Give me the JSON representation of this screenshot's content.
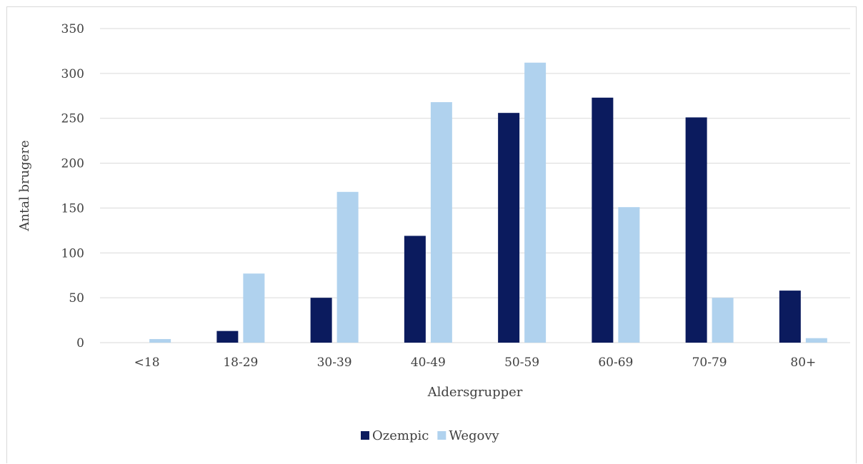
{
  "chart_data": {
    "type": "bar",
    "categories": [
      "<18",
      "18-29",
      "30-39",
      "40-49",
      "50-59",
      "60-69",
      "70-79",
      "80+"
    ],
    "series": [
      {
        "name": "Ozempic",
        "values": [
          0,
          13,
          50,
          119,
          256,
          273,
          251,
          58
        ],
        "color": "#0b1b5e"
      },
      {
        "name": "Wegovy",
        "values": [
          4,
          77,
          168,
          268,
          312,
          151,
          50,
          5
        ],
        "color": "#b0d2ee"
      }
    ],
    "xlabel": "Aldersgrupper",
    "ylabel": "Antal brugere",
    "ylim": [
      0,
      350
    ],
    "yticks": [
      0,
      50,
      100,
      150,
      200,
      250,
      300,
      350
    ],
    "grid": true,
    "legend_position": "bottom"
  }
}
